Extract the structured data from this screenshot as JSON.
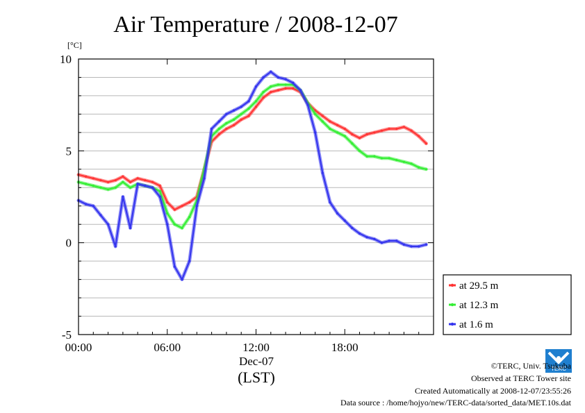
{
  "chart_data": {
    "type": "line",
    "title": "Air Temperature / 2008-12-07",
    "ylabel": "[°C]",
    "xlabel_date": "Dec-07",
    "xlabel_unit": "(LST)",
    "xlim": [
      0,
      24
    ],
    "ylim": [
      -5,
      10
    ],
    "x_ticks": [
      {
        "x": 0,
        "label": "00:00"
      },
      {
        "x": 6,
        "label": "06:00"
      },
      {
        "x": 12,
        "label": "12:00"
      },
      {
        "x": 18,
        "label": "18:00"
      }
    ],
    "y_ticks": [
      {
        "y": -5,
        "label": "-5"
      },
      {
        "y": 0,
        "label": "0"
      },
      {
        "y": 5,
        "label": "5"
      },
      {
        "y": 10,
        "label": "10"
      }
    ],
    "grid": true,
    "legend_position": "bottom-right, outside plot",
    "series": [
      {
        "name": "at 29.5 m",
        "color": "#ff3333",
        "x": [
          0,
          0.5,
          1,
          1.5,
          2,
          2.5,
          3,
          3.5,
          4,
          4.5,
          5,
          5.5,
          6,
          6.5,
          7,
          7.5,
          8,
          8.5,
          9,
          9.5,
          10,
          10.5,
          11,
          11.5,
          12,
          12.5,
          13,
          13.5,
          14,
          14.5,
          15,
          15.5,
          16,
          16.5,
          17,
          17.5,
          18,
          18.5,
          19,
          19.5,
          20,
          20.5,
          21,
          21.5,
          22,
          22.5,
          23,
          23.5
        ],
        "values": [
          3.7,
          3.6,
          3.5,
          3.4,
          3.3,
          3.4,
          3.6,
          3.3,
          3.5,
          3.4,
          3.3,
          3.1,
          2.2,
          1.8,
          2.0,
          2.2,
          2.5,
          4.0,
          5.5,
          5.9,
          6.2,
          6.4,
          6.7,
          6.9,
          7.4,
          7.9,
          8.2,
          8.3,
          8.4,
          8.4,
          8.2,
          7.6,
          7.2,
          6.9,
          6.6,
          6.4,
          6.2,
          5.9,
          5.7,
          5.9,
          6.0,
          6.1,
          6.2,
          6.2,
          6.3,
          6.1,
          5.8,
          5.4
        ]
      },
      {
        "name": "at 12.3 m",
        "color": "#33ee33",
        "x": [
          0,
          0.5,
          1,
          1.5,
          2,
          2.5,
          3,
          3.5,
          4,
          4.5,
          5,
          5.5,
          6,
          6.5,
          7,
          7.5,
          8,
          8.5,
          9,
          9.5,
          10,
          10.5,
          11,
          11.5,
          12,
          12.5,
          13,
          13.5,
          14,
          14.5,
          15,
          15.5,
          16,
          16.5,
          17,
          17.5,
          18,
          18.5,
          19,
          19.5,
          20,
          20.5,
          21,
          21.5,
          22,
          22.5,
          23,
          23.5
        ],
        "values": [
          3.3,
          3.2,
          3.1,
          3.0,
          2.9,
          3.0,
          3.3,
          3.0,
          3.2,
          3.1,
          3.0,
          2.8,
          1.6,
          1.0,
          0.8,
          1.4,
          2.3,
          4.0,
          5.8,
          6.2,
          6.5,
          6.7,
          7.0,
          7.3,
          7.7,
          8.2,
          8.5,
          8.6,
          8.6,
          8.6,
          8.3,
          7.6,
          7.0,
          6.6,
          6.2,
          6.0,
          5.8,
          5.4,
          5.0,
          4.7,
          4.7,
          4.6,
          4.6,
          4.5,
          4.4,
          4.3,
          4.1,
          4.0
        ]
      },
      {
        "name": "at 1.6 m",
        "color": "#3333ee",
        "x": [
          0,
          0.5,
          1,
          1.5,
          2,
          2.5,
          3,
          3.5,
          4,
          4.5,
          5,
          5.5,
          6,
          6.5,
          7,
          7.5,
          8,
          8.5,
          9,
          9.5,
          10,
          10.5,
          11,
          11.5,
          12,
          12.5,
          13,
          13.5,
          14,
          14.5,
          15,
          15.5,
          16,
          16.5,
          17,
          17.5,
          18,
          18.5,
          19,
          19.5,
          20,
          20.5,
          21,
          21.5,
          22,
          22.5,
          23,
          23.5
        ],
        "values": [
          2.3,
          2.1,
          2.0,
          1.5,
          1.0,
          -0.2,
          2.5,
          0.8,
          3.2,
          3.1,
          3.0,
          2.5,
          1.0,
          -1.3,
          -2.0,
          -1.0,
          2.0,
          3.5,
          6.2,
          6.6,
          7.0,
          7.2,
          7.4,
          7.7,
          8.5,
          9.0,
          9.3,
          9.0,
          8.9,
          8.7,
          8.3,
          7.5,
          6.0,
          3.8,
          2.2,
          1.6,
          1.2,
          0.8,
          0.5,
          0.3,
          0.2,
          0.0,
          0.1,
          0.1,
          -0.1,
          -0.2,
          -0.2,
          -0.1
        ]
      }
    ]
  },
  "footer": {
    "copyright": "©TERC, Univ. Tsukuba",
    "site": "Observed at TERC Tower site",
    "created": "Created Automatically at 2008-12-07/23:55:26",
    "source": "Data source : /home/hojyo/new/TERC-data/sorted_data/MET.10s.dat",
    "logo_text": "TERC"
  }
}
